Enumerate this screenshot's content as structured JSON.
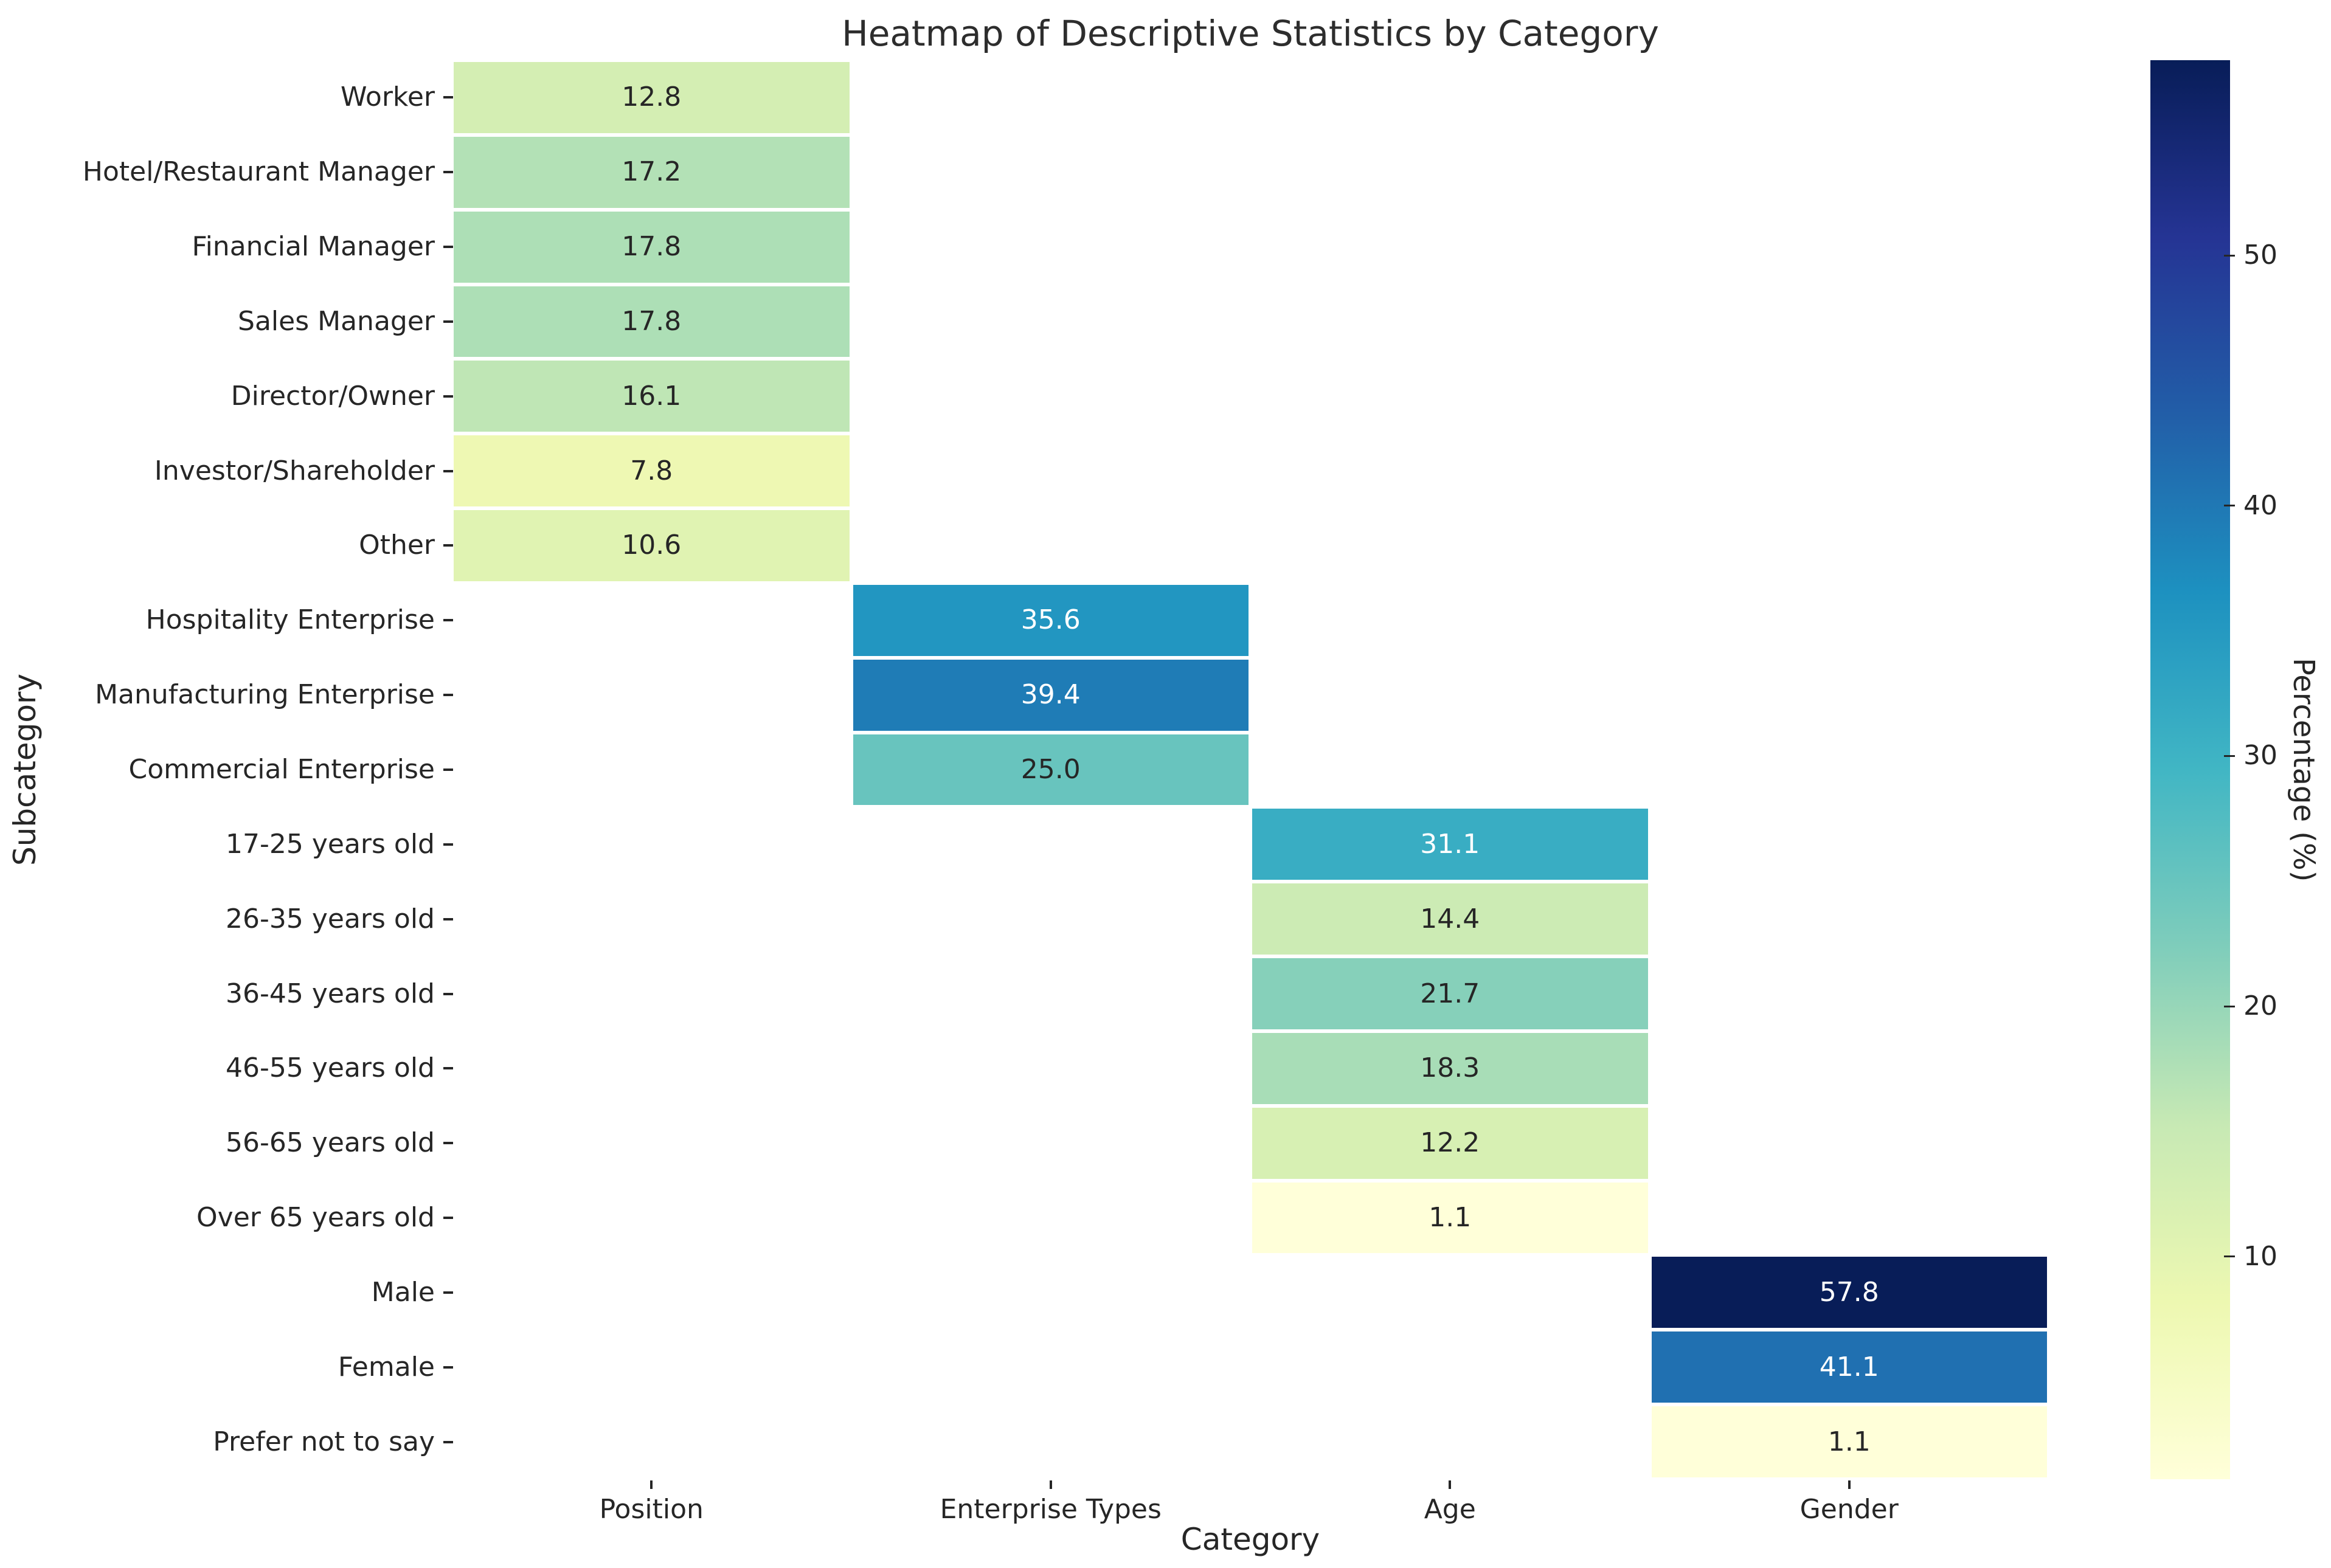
{
  "chart_data": {
    "type": "heatmap",
    "title": "Heatmap of Descriptive Statistics by Category",
    "xlabel": "Category",
    "ylabel": "Subcategory",
    "annot_decimals": 1,
    "grid": false,
    "columns": [
      "Position",
      "Enterprise Types",
      "Age",
      "Gender"
    ],
    "rows": [
      {
        "label": "Worker",
        "column": "Position",
        "value": 12.8
      },
      {
        "label": "Hotel/Restaurant Manager",
        "column": "Position",
        "value": 17.2
      },
      {
        "label": "Financial Manager",
        "column": "Position",
        "value": 17.8
      },
      {
        "label": "Sales Manager",
        "column": "Position",
        "value": 17.8
      },
      {
        "label": "Director/Owner",
        "column": "Position",
        "value": 16.1
      },
      {
        "label": "Investor/Shareholder",
        "column": "Position",
        "value": 7.8
      },
      {
        "label": "Other",
        "column": "Position",
        "value": 10.6
      },
      {
        "label": "Hospitality Enterprise",
        "column": "Enterprise Types",
        "value": 35.6
      },
      {
        "label": "Manufacturing Enterprise",
        "column": "Enterprise Types",
        "value": 39.4
      },
      {
        "label": "Commercial Enterprise",
        "column": "Enterprise Types",
        "value": 25.0
      },
      {
        "label": "17-25 years old",
        "column": "Age",
        "value": 31.1
      },
      {
        "label": "26-35 years old",
        "column": "Age",
        "value": 14.4
      },
      {
        "label": "36-45 years old",
        "column": "Age",
        "value": 21.7
      },
      {
        "label": "46-55 years old",
        "column": "Age",
        "value": 18.3
      },
      {
        "label": "56-65 years old",
        "column": "Age",
        "value": 12.2
      },
      {
        "label": "Over 65 years old",
        "column": "Age",
        "value": 1.1
      },
      {
        "label": "Male",
        "column": "Gender",
        "value": 57.8
      },
      {
        "label": "Female",
        "column": "Gender",
        "value": 41.1
      },
      {
        "label": "Prefer not to say",
        "column": "Gender",
        "value": 1.1
      }
    ],
    "colorbar": {
      "label": "Percentage (%)",
      "ticks": [
        10,
        20,
        30,
        40,
        50
      ],
      "vmin": 1.1,
      "vmax": 57.8,
      "colormap": "YlGnBu",
      "position": "right"
    }
  },
  "colors": {
    "background": "#ffffff",
    "text": "#262626",
    "title_text": "#2d2d2d",
    "annot_dark": "#262626",
    "annot_light": "#ffffff",
    "cell_gap": "#ffffff",
    "colormap_stops": [
      {
        "t": 0.0,
        "hex": "#ffffd9"
      },
      {
        "t": 0.125,
        "hex": "#edf8b1"
      },
      {
        "t": 0.25,
        "hex": "#c7e9b4"
      },
      {
        "t": 0.375,
        "hex": "#7fcdbb"
      },
      {
        "t": 0.5,
        "hex": "#41b6c4"
      },
      {
        "t": 0.625,
        "hex": "#1d91c0"
      },
      {
        "t": 0.75,
        "hex": "#225ea8"
      },
      {
        "t": 0.875,
        "hex": "#253494"
      },
      {
        "t": 1.0,
        "hex": "#081d58"
      }
    ]
  }
}
